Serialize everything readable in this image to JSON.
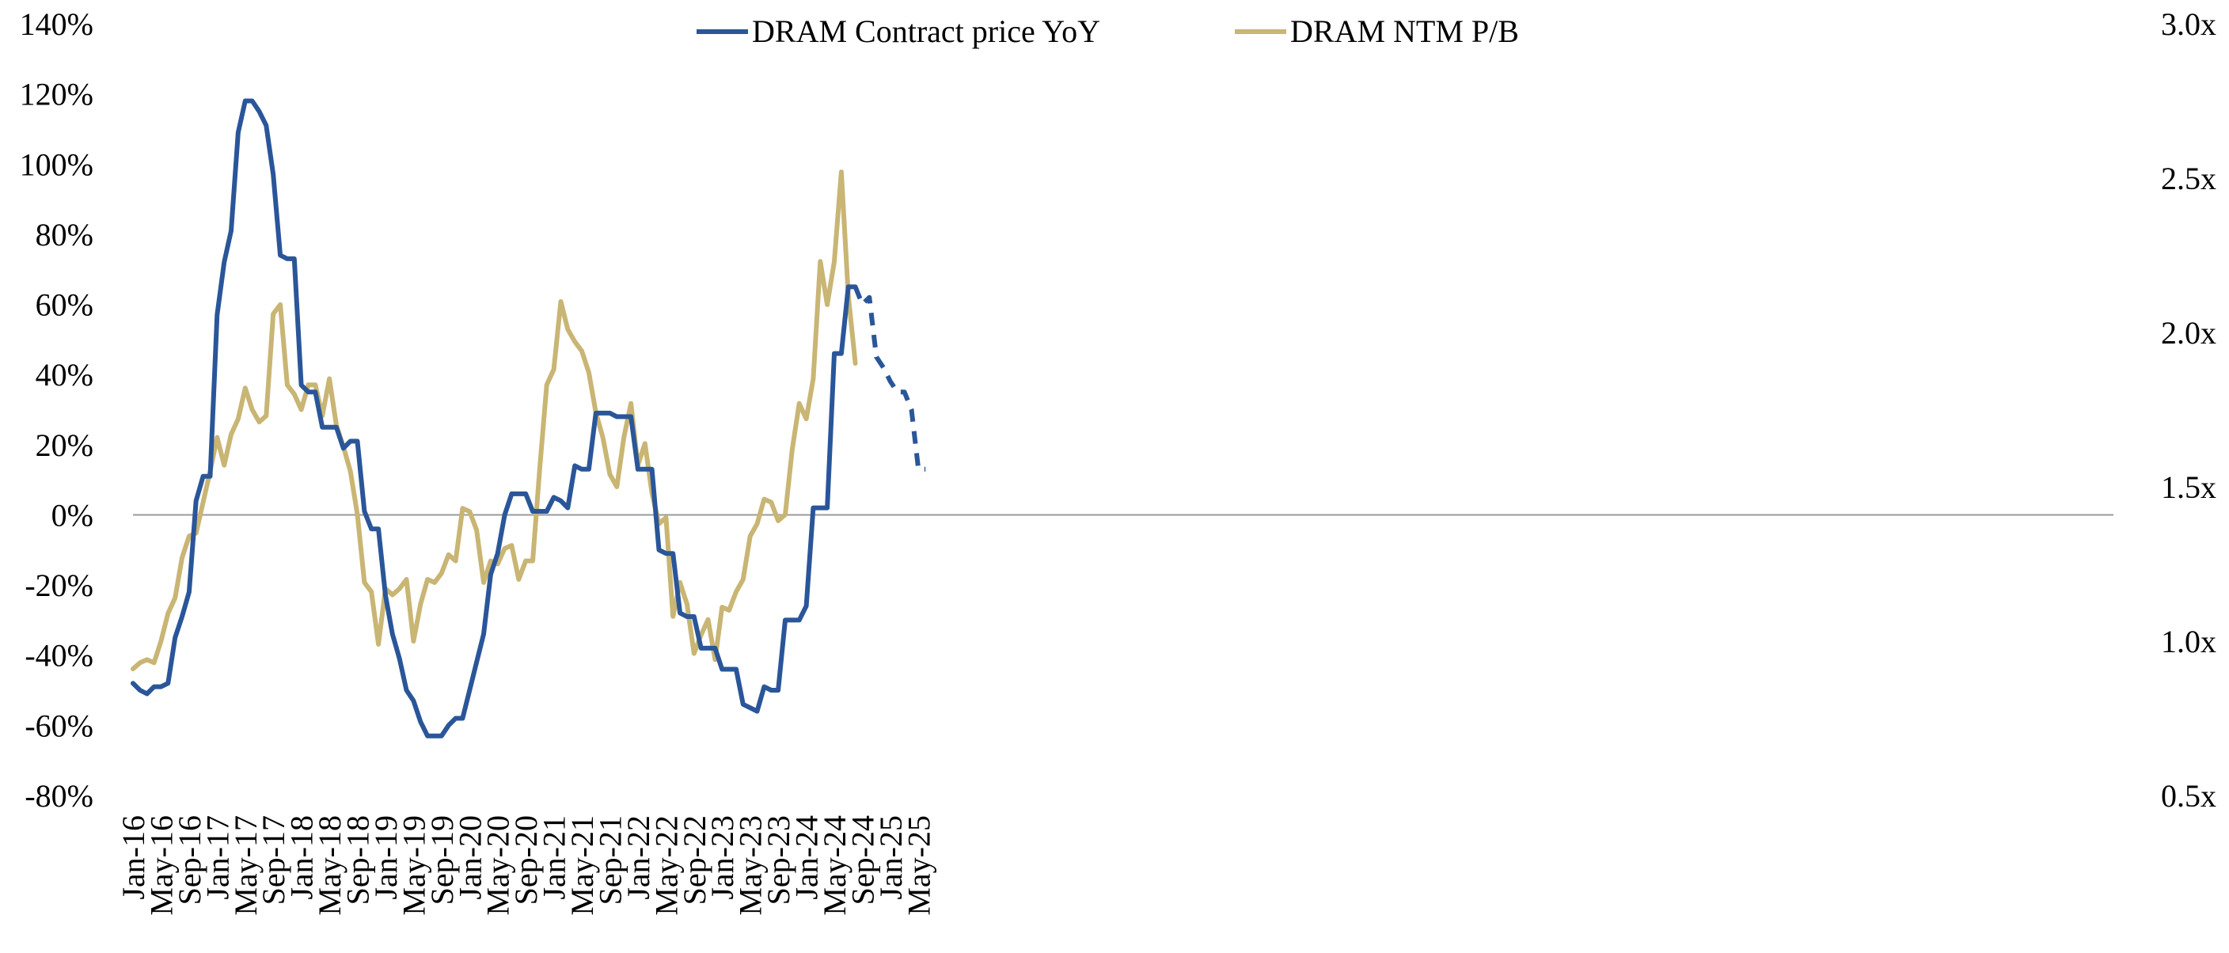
{
  "chart_data": {
    "type": "line",
    "title": "",
    "xlabel": "",
    "ylabel": "",
    "legend_position": "top-center",
    "grid": false,
    "x_tick_labels": [
      "Jan-16",
      "May-16",
      "Sep-16",
      "Jan-17",
      "May-17",
      "Sep-17",
      "Jan-18",
      "May-18",
      "Sep-18",
      "Jan-19",
      "May-19",
      "Sep-19",
      "Jan-20",
      "May-20",
      "Sep-20",
      "Jan-21",
      "May-21",
      "Sep-21",
      "Jan-22",
      "May-22",
      "Sep-22",
      "Jan-23",
      "May-23",
      "Sep-23",
      "Jan-24",
      "May-24",
      "Sep-24",
      "Jan-25",
      "May-25"
    ],
    "y_left": {
      "ylim": [
        -80,
        140
      ],
      "ticks": [
        -80,
        -60,
        -40,
        -20,
        0,
        20,
        40,
        60,
        80,
        100,
        120,
        140
      ],
      "tick_labels": [
        "-80%",
        "-60%",
        "-40%",
        "-20%",
        "0%",
        "20%",
        "40%",
        "60%",
        "80%",
        "100%",
        "120%",
        "140%"
      ]
    },
    "y_right": {
      "ylim": [
        0.5,
        3.0
      ],
      "ticks": [
        0.5,
        1.0,
        1.5,
        2.0,
        2.5,
        3.0
      ],
      "tick_labels": [
        "0.5x",
        "1.0x",
        "1.5x",
        "2.0x",
        "2.5x",
        "3.0x"
      ]
    },
    "series": [
      {
        "name": "DRAM Contract price YoY",
        "color": "#2a5699",
        "axis": "left",
        "x": [
          "Jan-16",
          "Feb-16",
          "Mar-16",
          "Apr-16",
          "May-16",
          "Jun-16",
          "Jul-16",
          "Aug-16",
          "Sep-16",
          "Oct-16",
          "Nov-16",
          "Dec-16",
          "Jan-17",
          "Feb-17",
          "Mar-17",
          "Apr-17",
          "May-17",
          "Jun-17",
          "Jul-17",
          "Aug-17",
          "Sep-17",
          "Oct-17",
          "Nov-17",
          "Dec-17",
          "Jan-18",
          "Feb-18",
          "Mar-18",
          "Apr-18",
          "May-18",
          "Jun-18",
          "Jul-18",
          "Aug-18",
          "Sep-18",
          "Oct-18",
          "Nov-18",
          "Dec-18",
          "Jan-19",
          "Feb-19",
          "Mar-19",
          "Apr-19",
          "May-19",
          "Jun-19",
          "Jul-19",
          "Aug-19",
          "Sep-19",
          "Oct-19",
          "Nov-19",
          "Dec-19",
          "Jan-20",
          "Feb-20",
          "Mar-20",
          "Apr-20",
          "May-20",
          "Jun-20",
          "Jul-20",
          "Aug-20",
          "Sep-20",
          "Oct-20",
          "Nov-20",
          "Dec-20",
          "Jan-21",
          "Feb-21",
          "Mar-21",
          "Apr-21",
          "May-21",
          "Jun-21",
          "Jul-21",
          "Aug-21",
          "Sep-21",
          "Oct-21",
          "Nov-21",
          "Dec-21",
          "Jan-22",
          "Feb-22",
          "Mar-22",
          "Apr-22",
          "May-22",
          "Jun-22",
          "Jul-22",
          "Aug-22",
          "Sep-22",
          "Oct-22",
          "Nov-22",
          "Dec-22",
          "Jan-23",
          "Feb-23",
          "Mar-23",
          "Apr-23",
          "May-23",
          "Jun-23",
          "Jul-23",
          "Aug-23",
          "Sep-23",
          "Oct-23",
          "Nov-23",
          "Dec-23",
          "Jan-24",
          "Feb-24",
          "Mar-24",
          "Apr-24",
          "May-24",
          "Jun-24",
          "Jul-24",
          "Aug-24"
        ],
        "values": [
          -48,
          -50,
          -51,
          -49,
          -49,
          -48,
          -35,
          -29,
          -22,
          4,
          11,
          11,
          57,
          72,
          81,
          109,
          118,
          118,
          115,
          111,
          97,
          74,
          73,
          73,
          37,
          35,
          35,
          25,
          25,
          25,
          19,
          21,
          21,
          1,
          -4,
          -4,
          -23,
          -34,
          -41,
          -50,
          -53,
          -59,
          -63,
          -63,
          -63,
          -60,
          -58,
          -58,
          -50,
          -42,
          -34,
          -17,
          -11,
          0,
          6,
          6,
          6,
          1,
          1,
          1,
          5,
          4,
          2,
          14,
          13,
          13,
          29,
          29,
          29,
          28,
          28,
          28,
          13,
          13,
          13,
          -10,
          -11,
          -11,
          -28,
          -29,
          -29,
          -38,
          -38,
          -38,
          -44,
          -44,
          -44,
          -54,
          -55,
          -56,
          -49,
          -50,
          -50,
          -30,
          -30,
          -30,
          -26,
          2,
          2,
          2,
          46,
          46,
          65,
          65
        ]
      },
      {
        "name": "DRAM Contract price YoY (forecast)",
        "color": "#2a5699",
        "axis": "left",
        "dashed": true,
        "x": [
          "Aug-24",
          "Sep-24",
          "Oct-24",
          "Nov-24",
          "Dec-24",
          "Jan-25",
          "Feb-25",
          "Mar-25",
          "Apr-25",
          "May-25",
          "Jun-25"
        ],
        "values": [
          65,
          60,
          62,
          45,
          42,
          38,
          35,
          35,
          30,
          13,
          13
        ]
      },
      {
        "name": "DRAM NTM P/B",
        "color": "#c9b574",
        "axis": "right",
        "x": [
          "Jan-16",
          "Feb-16",
          "Mar-16",
          "Apr-16",
          "May-16",
          "Jun-16",
          "Jul-16",
          "Aug-16",
          "Sep-16",
          "Oct-16",
          "Nov-16",
          "Dec-16",
          "Jan-17",
          "Feb-17",
          "Mar-17",
          "Apr-17",
          "May-17",
          "Jun-17",
          "Jul-17",
          "Aug-17",
          "Sep-17",
          "Oct-17",
          "Nov-17",
          "Dec-17",
          "Jan-18",
          "Feb-18",
          "Mar-18",
          "Apr-18",
          "May-18",
          "Jun-18",
          "Jul-18",
          "Aug-18",
          "Sep-18",
          "Oct-18",
          "Nov-18",
          "Dec-18",
          "Jan-19",
          "Feb-19",
          "Mar-19",
          "Apr-19",
          "May-19",
          "Jun-19",
          "Jul-19",
          "Aug-19",
          "Sep-19",
          "Oct-19",
          "Nov-19",
          "Dec-19",
          "Jan-20",
          "Feb-20",
          "Mar-20",
          "Apr-20",
          "May-20",
          "Jun-20",
          "Jul-20",
          "Aug-20",
          "Sep-20",
          "Oct-20",
          "Nov-20",
          "Dec-20",
          "Jan-21",
          "Feb-21",
          "Mar-21",
          "Apr-21",
          "May-21",
          "Jun-21",
          "Jul-21",
          "Aug-21",
          "Sep-21",
          "Oct-21",
          "Nov-21",
          "Dec-21",
          "Jan-22",
          "Feb-22",
          "Mar-22",
          "Apr-22",
          "May-22",
          "Jun-22",
          "Jul-22",
          "Aug-22",
          "Sep-22",
          "Oct-22",
          "Nov-22",
          "Dec-22",
          "Jan-23",
          "Feb-23",
          "Mar-23",
          "Apr-23",
          "May-23",
          "Jun-23",
          "Jul-23",
          "Aug-23",
          "Sep-23",
          "Oct-23",
          "Nov-23",
          "Dec-23",
          "Jan-24",
          "Feb-24",
          "Mar-24",
          "Apr-24",
          "May-24",
          "Jun-24",
          "Jul-24",
          "Aug-24"
        ],
        "values": [
          0.91,
          0.93,
          0.94,
          0.93,
          1.0,
          1.09,
          1.14,
          1.27,
          1.34,
          1.35,
          1.45,
          1.55,
          1.66,
          1.57,
          1.67,
          1.72,
          1.82,
          1.75,
          1.71,
          1.73,
          2.06,
          2.09,
          1.83,
          1.8,
          1.75,
          1.83,
          1.83,
          1.73,
          1.85,
          1.7,
          1.63,
          1.55,
          1.41,
          1.19,
          1.16,
          0.99,
          1.17,
          1.15,
          1.17,
          1.2,
          1.0,
          1.12,
          1.2,
          1.19,
          1.22,
          1.28,
          1.26,
          1.43,
          1.42,
          1.36,
          1.19,
          1.26,
          1.25,
          1.3,
          1.31,
          1.2,
          1.26,
          1.26,
          1.56,
          1.83,
          1.88,
          2.1,
          2.01,
          1.97,
          1.94,
          1.87,
          1.74,
          1.66,
          1.54,
          1.5,
          1.66,
          1.77,
          1.57,
          1.64,
          1.48,
          1.38,
          1.4,
          1.08,
          1.19,
          1.12,
          0.96,
          1.02,
          1.07,
          0.94,
          1.11,
          1.1,
          1.16,
          1.2,
          1.34,
          1.38,
          1.46,
          1.45,
          1.39,
          1.41,
          1.62,
          1.77,
          1.72,
          1.85,
          2.23,
          2.09,
          2.23,
          2.52,
          2.12,
          1.9
        ]
      }
    ],
    "legend": [
      "DRAM Contract price YoY",
      "DRAM NTM P/B"
    ]
  }
}
